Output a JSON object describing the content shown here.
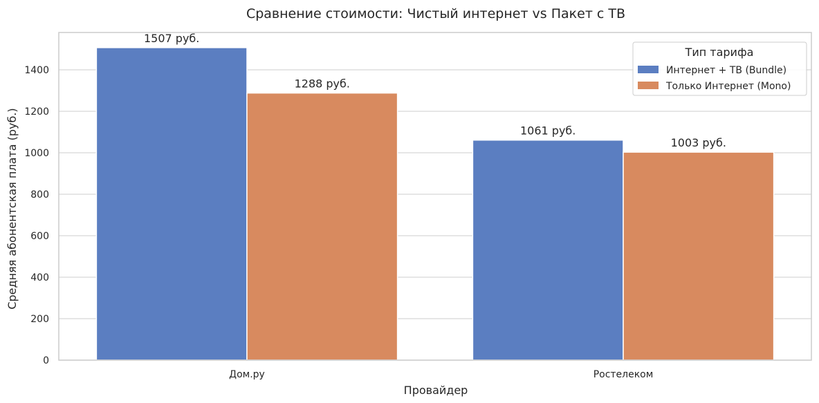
{
  "chart_data": {
    "type": "bar",
    "title": "Сравнение стоимости: Чистый интернет vs Пакет с ТВ",
    "xlabel": "Провайдер",
    "ylabel": "Средняя абонентская плата (руб.)",
    "categories": [
      "Дом.ру",
      "Ростелеком"
    ],
    "series": [
      {
        "name": "Интернет + ТВ (Bundle)",
        "color": "#5b7ec1",
        "values": [
          1507,
          1061
        ],
        "labels": [
          "1507 руб.",
          "1061 руб."
        ]
      },
      {
        "name": "Только Интернет (Mono)",
        "color": "#d88a5f",
        "values": [
          1288,
          1003
        ],
        "labels": [
          "1288 руб.",
          "1003 руб."
        ]
      }
    ],
    "ylim": [
      0,
      1580
    ],
    "yticks": [
      0,
      200,
      400,
      600,
      800,
      1000,
      1200,
      1400
    ],
    "grid": true,
    "legend": {
      "title": "Тип тарифа",
      "placement": "top-right"
    }
  }
}
